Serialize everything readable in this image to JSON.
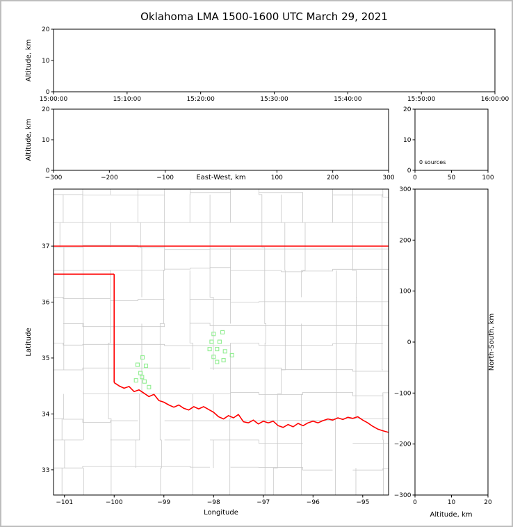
{
  "figure": {
    "title": "Oklahoma LMA 1500-1600 UTC March 29, 2021"
  },
  "colors": {
    "background": "#ffffff",
    "frame": "#bdbdbd",
    "axis": "#000000",
    "county_line": "#c8c8c8",
    "state_border": "#ff0000",
    "source_marker": "#90ee90"
  },
  "chart_data": [
    {
      "id": "time_height",
      "type": "scatter",
      "xlabel": "",
      "ylabel": "Altitude, km",
      "xlim": [
        0,
        6
      ],
      "ylim": [
        0,
        20
      ],
      "xticks": [
        {
          "v": 0,
          "label": "15:00:00"
        },
        {
          "v": 1,
          "label": "15:10:00"
        },
        {
          "v": 2,
          "label": "15:20:00"
        },
        {
          "v": 3,
          "label": "15:30:00"
        },
        {
          "v": 4,
          "label": "15:40:00"
        },
        {
          "v": 5,
          "label": "15:50:00"
        },
        {
          "v": 6,
          "label": "16:00:00"
        }
      ],
      "yticks": [
        {
          "v": 0,
          "label": "0"
        },
        {
          "v": 10,
          "label": "10"
        },
        {
          "v": 20,
          "label": "20"
        }
      ],
      "points": []
    },
    {
      "id": "ew_height",
      "type": "scatter",
      "xlabel": "East-West, km",
      "ylabel": "Altitude, km",
      "xlim": [
        -300,
        300
      ],
      "ylim": [
        0,
        20
      ],
      "xticks": [
        {
          "v": -300,
          "label": "−300"
        },
        {
          "v": -200,
          "label": "−200"
        },
        {
          "v": -100,
          "label": "−100"
        },
        {
          "v": 100,
          "label": "100"
        },
        {
          "v": 200,
          "label": "200"
        },
        {
          "v": 300,
          "label": "300"
        }
      ],
      "yticks": [
        {
          "v": 0,
          "label": "0"
        },
        {
          "v": 10,
          "label": "10"
        },
        {
          "v": 20,
          "label": "20"
        }
      ],
      "points": []
    },
    {
      "id": "alt_hist",
      "type": "scatter",
      "annotation": "0 sources",
      "xlim": [
        0,
        100
      ],
      "ylim": [
        0,
        20
      ],
      "xticks": [
        {
          "v": 0,
          "label": "0"
        },
        {
          "v": 50,
          "label": "50"
        },
        {
          "v": 100,
          "label": "100"
        }
      ],
      "yticks": [
        {
          "v": 0,
          "label": "0"
        },
        {
          "v": 10,
          "label": "10"
        },
        {
          "v": 20,
          "label": "20"
        }
      ],
      "points": []
    },
    {
      "id": "plan_view",
      "type": "scatter",
      "xlabel": "Longitude",
      "ylabel": "Latitude",
      "xlim": [
        -101.22,
        -94.48
      ],
      "ylim": [
        32.55,
        38.02
      ],
      "xticks": [
        {
          "v": -101,
          "label": "−101"
        },
        {
          "v": -100,
          "label": "−100"
        },
        {
          "v": -99,
          "label": "−99"
        },
        {
          "v": -98,
          "label": "−98"
        },
        {
          "v": -97,
          "label": "−97"
        },
        {
          "v": -96,
          "label": "−96"
        },
        {
          "v": -95,
          "label": "−95"
        }
      ],
      "yticks": [
        {
          "v": 33,
          "label": "33"
        },
        {
          "v": 34,
          "label": "34"
        },
        {
          "v": 35,
          "label": "35"
        },
        {
          "v": 36,
          "label": "36"
        },
        {
          "v": 37,
          "label": "37"
        }
      ],
      "state_border": {
        "segments": [
          [
            [
              -101.22,
              37.0
            ],
            [
              -94.48,
              37.0
            ]
          ],
          [
            [
              -101.22,
              36.5
            ],
            [
              -100.0,
              36.5
            ]
          ],
          [
            [
              -100.0,
              36.5
            ],
            [
              -100.0,
              34.56
            ]
          ],
          [
            [
              -100.0,
              34.56
            ],
            [
              -99.9,
              34.5
            ],
            [
              -99.8,
              34.46
            ],
            [
              -99.7,
              34.49
            ],
            [
              -99.6,
              34.4
            ],
            [
              -99.5,
              34.43
            ],
            [
              -99.4,
              34.37
            ],
            [
              -99.3,
              34.31
            ],
            [
              -99.2,
              34.35
            ],
            [
              -99.1,
              34.24
            ],
            [
              -99.0,
              34.21
            ],
            [
              -98.9,
              34.16
            ],
            [
              -98.8,
              34.12
            ],
            [
              -98.7,
              34.16
            ],
            [
              -98.6,
              34.1
            ],
            [
              -98.5,
              34.07
            ],
            [
              -98.4,
              34.13
            ],
            [
              -98.3,
              34.09
            ],
            [
              -98.2,
              34.13
            ],
            [
              -98.1,
              34.08
            ],
            [
              -98.0,
              34.03
            ],
            [
              -97.9,
              33.95
            ],
            [
              -97.8,
              33.91
            ],
            [
              -97.7,
              33.97
            ],
            [
              -97.6,
              33.93
            ],
            [
              -97.5,
              33.99
            ],
            [
              -97.4,
              33.86
            ],
            [
              -97.3,
              33.84
            ],
            [
              -97.2,
              33.89
            ],
            [
              -97.1,
              33.82
            ],
            [
              -97.0,
              33.87
            ],
            [
              -96.9,
              33.84
            ],
            [
              -96.8,
              33.87
            ],
            [
              -96.7,
              33.79
            ],
            [
              -96.6,
              33.76
            ],
            [
              -96.5,
              33.81
            ],
            [
              -96.4,
              33.77
            ],
            [
              -96.3,
              33.83
            ],
            [
              -96.2,
              33.79
            ],
            [
              -96.1,
              33.84
            ],
            [
              -96.0,
              33.87
            ],
            [
              -95.9,
              33.84
            ],
            [
              -95.8,
              33.88
            ],
            [
              -95.7,
              33.91
            ],
            [
              -95.6,
              33.89
            ],
            [
              -95.5,
              33.93
            ],
            [
              -95.4,
              33.9
            ],
            [
              -95.3,
              33.94
            ],
            [
              -95.2,
              33.92
            ],
            [
              -95.1,
              33.95
            ],
            [
              -95.0,
              33.89
            ],
            [
              -94.9,
              33.84
            ],
            [
              -94.8,
              33.78
            ],
            [
              -94.7,
              33.73
            ],
            [
              -94.6,
              33.7
            ],
            [
              -94.48,
              33.67
            ]
          ]
        ]
      },
      "sources": {
        "marker": "open-square",
        "points": [
          [
            -99.43,
            35.01
          ],
          [
            -99.53,
            34.88
          ],
          [
            -99.36,
            34.86
          ],
          [
            -99.47,
            34.73
          ],
          [
            -99.56,
            34.6
          ],
          [
            -99.39,
            34.58
          ],
          [
            -99.44,
            34.66
          ],
          [
            -99.3,
            34.48
          ],
          [
            -98.0,
            35.43
          ],
          [
            -97.82,
            35.46
          ],
          [
            -98.04,
            35.29
          ],
          [
            -97.88,
            35.29
          ],
          [
            -98.08,
            35.16
          ],
          [
            -97.93,
            35.16
          ],
          [
            -97.77,
            35.12
          ],
          [
            -97.63,
            35.05
          ],
          [
            -98.0,
            35.02
          ],
          [
            -97.93,
            34.93
          ],
          [
            -97.8,
            34.96
          ]
        ]
      }
    },
    {
      "id": "ns_height",
      "type": "scatter",
      "xlabel": "Altitude, km",
      "ylabel": "North-South, km",
      "xlim": [
        0,
        20
      ],
      "ylim": [
        -300,
        300
      ],
      "xticks": [
        {
          "v": 0,
          "label": "0"
        },
        {
          "v": 10,
          "label": "10"
        },
        {
          "v": 20,
          "label": "20"
        }
      ],
      "yticks": [
        {
          "v": 300,
          "label": "300"
        },
        {
          "v": 200,
          "label": "200"
        },
        {
          "v": 100,
          "label": "100"
        },
        {
          "v": 0,
          "label": "0"
        },
        {
          "v": -100,
          "label": "−100"
        },
        {
          "v": -200,
          "label": "−200"
        },
        {
          "v": -300,
          "label": "−300"
        }
      ],
      "points": []
    }
  ]
}
